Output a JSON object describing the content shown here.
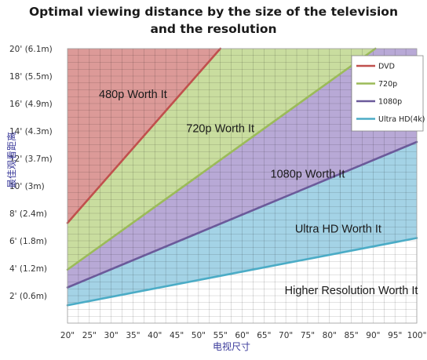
{
  "chart_data": {
    "type": "area",
    "title_lines": [
      "Optimal viewing distance by the size of the television",
      "and the resolution"
    ],
    "xlabel": "电视尺寸",
    "ylabel": "最佳观看距离",
    "x_categories": [
      20,
      25,
      30,
      35,
      40,
      45,
      50,
      55,
      60,
      65,
      70,
      75,
      80,
      85,
      90,
      95,
      100
    ],
    "x_tick_labels": [
      "20\"",
      "25\"",
      "30\"",
      "35\"",
      "40\"",
      "45\"",
      "50\"",
      "55\"",
      "60\"",
      "65\"",
      "70\"",
      "75\"",
      "80\"",
      "85\"",
      "90\"",
      "95\"",
      "100\""
    ],
    "xlim": [
      20,
      100
    ],
    "ylim": [
      0,
      20
    ],
    "y_ticks": [
      {
        "value": 2,
        "label": "2' (0.6m)"
      },
      {
        "value": 4,
        "label": "4' (1.2m)"
      },
      {
        "value": 6,
        "label": "6' (1.8m)"
      },
      {
        "value": 8,
        "label": "8' (2.4m)"
      },
      {
        "value": 10,
        "label": "10' (3m)"
      },
      {
        "value": 12,
        "label": "12' (3.7m)"
      },
      {
        "value": 14,
        "label": "14' (4.3m)"
      },
      {
        "value": 16,
        "label": "16' (4.9m)"
      },
      {
        "value": 18,
        "label": "18' (5.5m)"
      },
      {
        "value": 20,
        "label": "20' (6.1m)"
      }
    ],
    "grid": true,
    "legend_position": "top-right",
    "series": [
      {
        "name": "DVD",
        "color": "#c0504d",
        "fill": "#dc9a98",
        "points": [
          [
            20,
            7.3
          ],
          [
            55,
            20
          ]
        ]
      },
      {
        "name": "720p",
        "color": "#9bbb59",
        "fill": "#c9dd9f",
        "points": [
          [
            20,
            3.9
          ],
          [
            80,
            17.6
          ]
        ]
      },
      {
        "name": "1080p",
        "color": "#6b5a9a",
        "fill": "#b8a9d6",
        "points": [
          [
            20,
            2.6
          ],
          [
            100,
            13.2
          ]
        ]
      },
      {
        "name": "Ultra HD(4k)",
        "color": "#4bacc6",
        "fill": "#a4d3e6",
        "points": [
          [
            20,
            1.3
          ],
          [
            100,
            6.2
          ]
        ]
      }
    ],
    "annotations": [
      {
        "text": "480p Worth It",
        "x": 35,
        "y": 16.7
      },
      {
        "text": "720p Worth It",
        "x": 55,
        "y": 14.2
      },
      {
        "text": "1080p Worth It",
        "x": 75,
        "y": 10.9
      },
      {
        "text": "Ultra HD Worth It",
        "x": 82,
        "y": 6.9
      },
      {
        "text": "Higher Resolution Worth It",
        "x": 85,
        "y": 2.4
      }
    ]
  }
}
